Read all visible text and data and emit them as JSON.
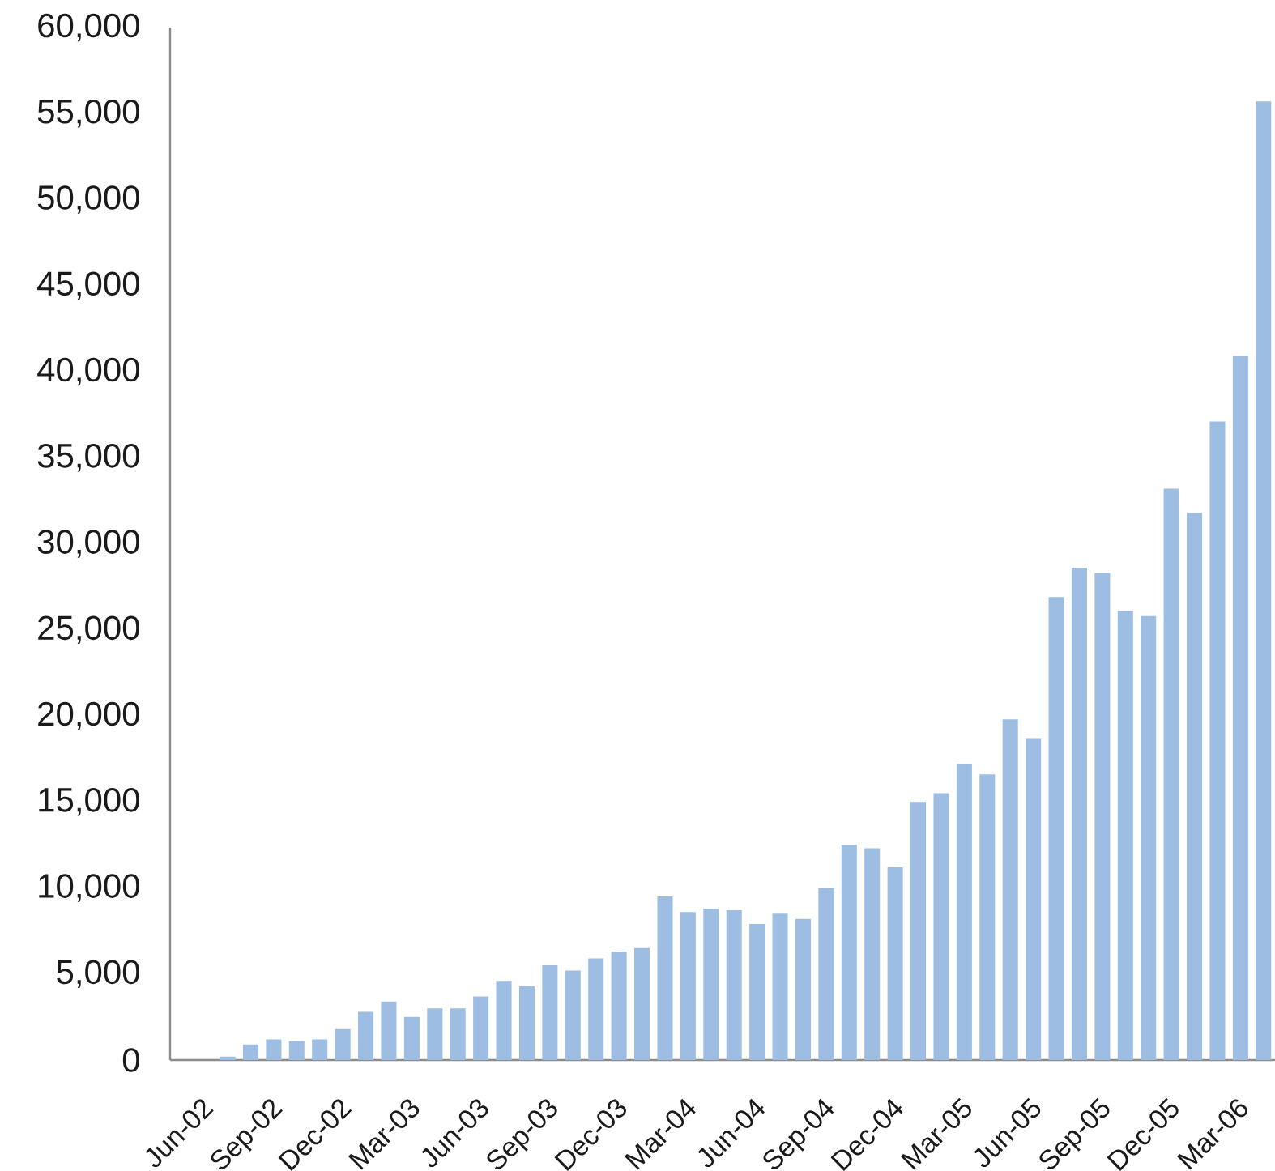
{
  "chart_data": {
    "type": "bar",
    "categories": [
      "Jun-02",
      null,
      null,
      "Sep-02",
      null,
      null,
      "Dec-02",
      null,
      null,
      "Mar-03",
      null,
      null,
      "Jun-03",
      null,
      null,
      "Sep-03",
      null,
      null,
      "Dec-03",
      null,
      null,
      "Mar-04",
      null,
      null,
      "Jun-04",
      null,
      null,
      "Sep-04",
      null,
      null,
      "Dec-04",
      null,
      null,
      "Mar-05",
      null,
      null,
      "Jun-05",
      null,
      null,
      "Sep-05",
      null,
      null,
      "Dec-05",
      null,
      null,
      "Mar-06",
      null,
      null
    ],
    "values": [
      null,
      null,
      200,
      900,
      1200,
      1100,
      1200,
      1800,
      2800,
      3400,
      2500,
      3000,
      3000,
      3700,
      4600,
      4300,
      5500,
      5200,
      5900,
      6300,
      6500,
      9500,
      8600,
      8800,
      8700,
      7900,
      8500,
      8200,
      10000,
      12500,
      12300,
      11200,
      15000,
      15500,
      17200,
      16600,
      19800,
      18700,
      26900,
      28600,
      28300,
      26100,
      25800,
      33200,
      31800,
      37100,
      40900,
      55700
    ],
    "color": "#9dbde3",
    "ylim": [
      0,
      60000
    ],
    "yticks": [
      0,
      {
        "value": 5000,
        "label": "5,000"
      },
      {
        "value": 10000,
        "label": "10,000"
      },
      {
        "value": 15000,
        "label": "15,000"
      },
      {
        "value": 20000,
        "label": "20,000"
      },
      {
        "value": 25000,
        "label": "25,000"
      },
      {
        "value": 30000,
        "label": "30,000"
      },
      {
        "value": 35000,
        "label": "35,000"
      },
      {
        "value": 40000,
        "label": "40,000"
      },
      {
        "value": 45000,
        "label": "45,000"
      },
      {
        "value": 50000,
        "label": "50,000"
      },
      {
        "value": 55000,
        "label": "55,000"
      },
      {
        "value": 60000,
        "label": "60,000"
      }
    ]
  }
}
